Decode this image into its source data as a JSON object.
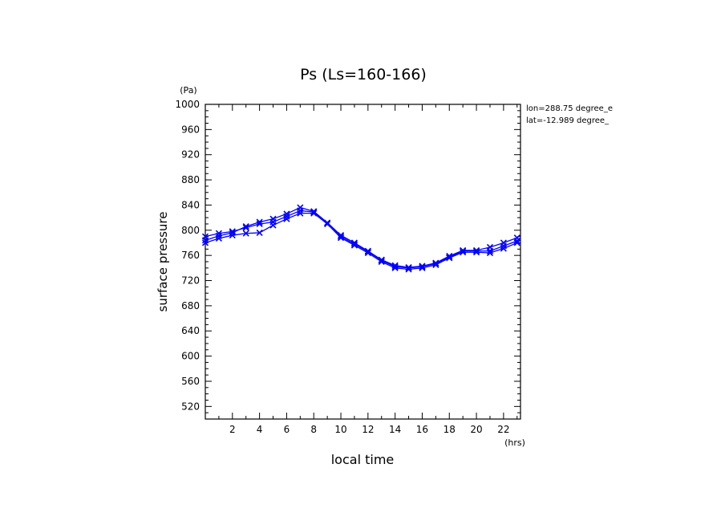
{
  "chart_data": {
    "type": "line",
    "title": "Ps (Ls=160-166)",
    "xlabel": "local time",
    "ylabel": "surface pressure",
    "xunit": "(hrs)",
    "yunit": "(Pa)",
    "xlim": [
      0,
      23.25
    ],
    "ylim": [
      500,
      1000
    ],
    "xticks": [
      2,
      4,
      6,
      8,
      10,
      12,
      14,
      16,
      18,
      20,
      22
    ],
    "yticks": [
      520,
      560,
      600,
      640,
      680,
      720,
      760,
      800,
      840,
      880,
      920,
      960,
      1000
    ],
    "grid": false,
    "annotations": [
      "lon=288.75 degree_e",
      "lat=-12.989 degree_"
    ],
    "line_color": "#0000ff",
    "x": [
      0.0,
      1.0,
      2.0,
      3.0,
      4.0,
      5.0,
      6.0,
      7.0,
      8.0,
      9.0,
      10.0,
      11.0,
      12.0,
      13.0,
      14.0,
      15.0,
      16.0,
      17.0,
      18.0,
      19.0,
      20.0,
      21.0,
      22.0,
      23.0
    ],
    "series": [
      {
        "values": [
          790,
          795,
          798,
          804,
          810,
          813,
          822,
          831,
          829,
          810,
          790,
          778,
          766,
          752,
          742,
          740,
          742,
          747,
          757,
          767,
          767,
          767,
          775,
          783
        ]
      },
      {
        "values": [
          784,
          791,
          796,
          806,
          813,
          818,
          826,
          836,
          830,
          812,
          792,
          780,
          767,
          753,
          744,
          741,
          743,
          748,
          759,
          768,
          768,
          773,
          780,
          788
        ]
      },
      {
        "values": [
          780,
          787,
          792,
          795,
          796,
          808,
          818,
          827,
          827,
          810,
          788,
          776,
          764,
          750,
          740,
          738,
          740,
          745,
          756,
          765,
          765,
          764,
          771,
          780
        ]
      }
    ]
  }
}
